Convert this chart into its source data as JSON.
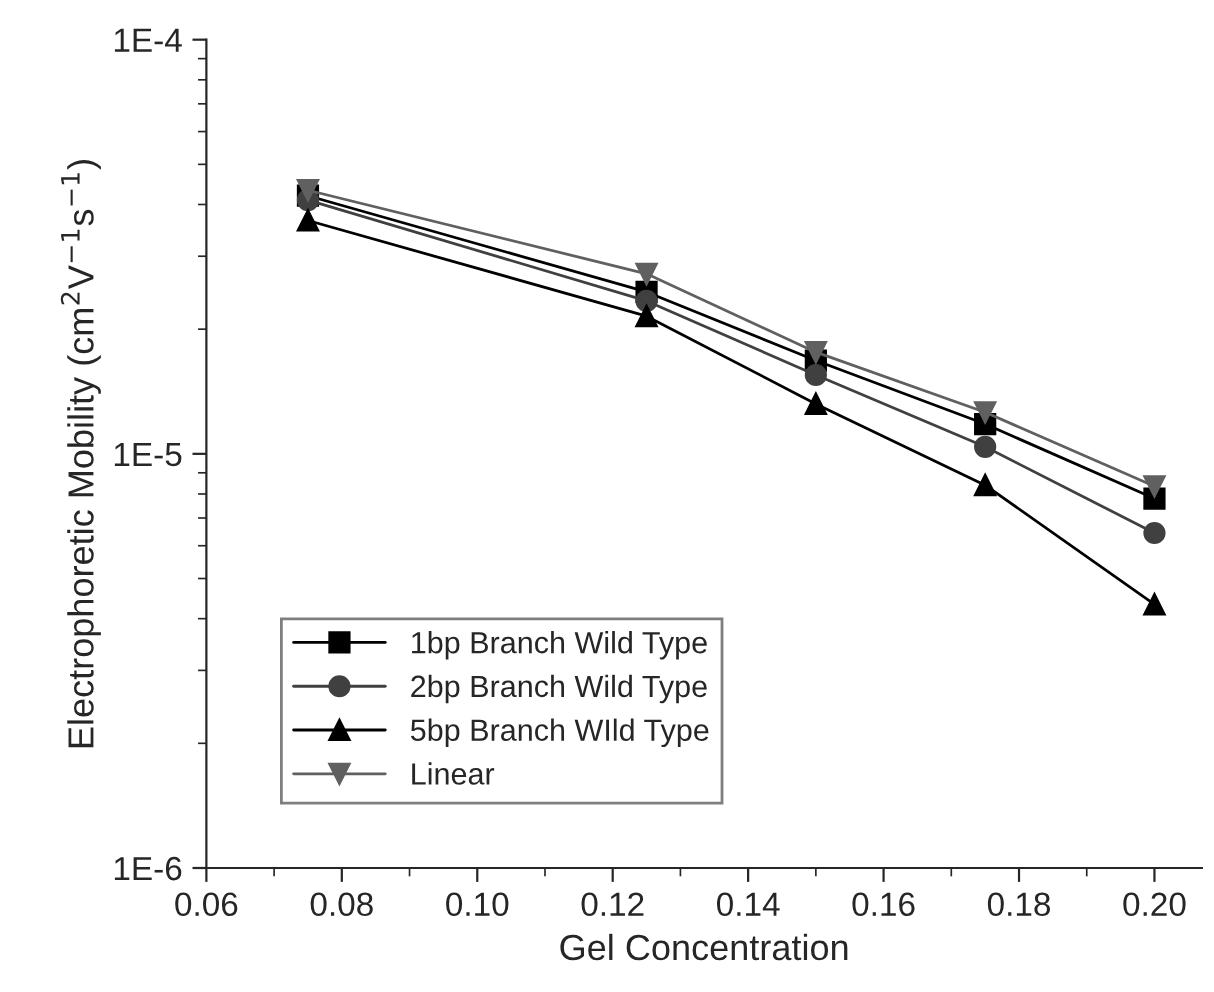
{
  "chart_data": {
    "type": "line",
    "xlabel": "Gel Concentration",
    "ylabel": "Electrophoretic Mobility (cm$^{2}$V$^{−1}$s$^{−1}$)",
    "x": [
      0.075,
      0.125,
      0.15,
      0.175,
      0.2
    ],
    "series": [
      {
        "name": "1bp Branch Wild Type",
        "color": "#000000",
        "marker": "square",
        "values": [
          4.2e-05,
          2.46e-05,
          1.68e-05,
          1.18e-05,
          7.8e-06
        ]
      },
      {
        "name": "2bp Branch Wild Type",
        "color": "#404040",
        "marker": "circle",
        "values": [
          4.1e-05,
          2.34e-05,
          1.55e-05,
          1.04e-05,
          6.44e-06
        ]
      },
      {
        "name": "5bp Branch WIld Type",
        "color": "#000000",
        "marker": "triangle",
        "values": [
          3.66e-05,
          2.15e-05,
          1.32e-05,
          8.4e-06,
          4.33e-06
        ]
      },
      {
        "name": "Linear",
        "color": "#606060",
        "marker": "triangle_down",
        "values": [
          4.33e-05,
          2.72e-05,
          1.76e-05,
          1.26e-05,
          8.35e-06
        ]
      }
    ],
    "log": "y",
    "xlim": [
      0.06,
      0.207
    ],
    "xticks": [
      0.06,
      0.08,
      {
        "value": 0.1,
        "label": "0.10"
      },
      0.12,
      0.14,
      0.16,
      0.18,
      {
        "value": 0.2,
        "label": "0.20"
      }
    ],
    "ylim": [
      1e-06,
      0.0001
    ],
    "yticks": [
      {
        "value": 1e-06,
        "label": "1E-6"
      },
      {
        "value": 1e-05,
        "label": "1E-5"
      },
      {
        "value": 0.0001,
        "label": "1E-4"
      }
    ],
    "line_style": "solid",
    "grid": false,
    "legend": "lower left"
  }
}
